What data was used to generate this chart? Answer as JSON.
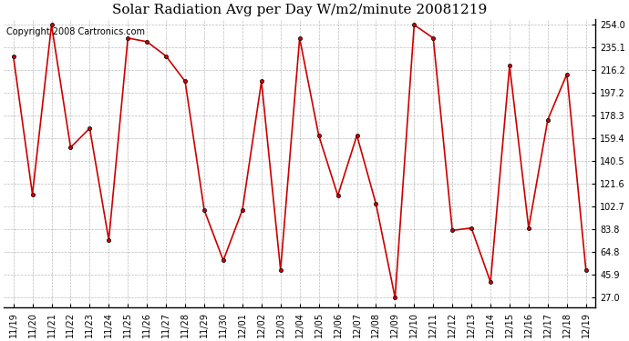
{
  "title": "Solar Radiation Avg per Day W/m2/minute 20081219",
  "copyright_text": "Copyright 2008 Cartronics.com",
  "labels": [
    "11/19",
    "11/20",
    "11/21",
    "11/22",
    "11/23",
    "11/24",
    "11/25",
    "11/26",
    "11/27",
    "11/28",
    "11/29",
    "11/30",
    "12/01",
    "12/02",
    "12/03",
    "12/04",
    "12/05",
    "12/06",
    "12/07",
    "12/08",
    "12/09",
    "12/10",
    "12/11",
    "12/12",
    "12/13",
    "12/14",
    "12/15",
    "12/16",
    "12/17",
    "12/18",
    "12/19"
  ],
  "values": [
    228.0,
    113.0,
    254.0,
    152.0,
    168.0,
    75.0,
    243.0,
    240.0,
    228.0,
    207.0,
    100.0,
    58.0,
    100.0,
    207.0,
    50.0,
    243.0,
    162.0,
    112.0,
    162.0,
    105.0,
    27.0,
    254.0,
    243.0,
    83.0,
    85.0,
    40.0,
    220.0,
    85.0,
    175.0,
    213.0,
    50.0
  ],
  "line_color": "#cc0000",
  "marker": "o",
  "marker_size": 3,
  "marker_facecolor": "#cc0000",
  "marker_edgecolor": "#000000",
  "background_color": "#ffffff",
  "grid_color": "#aaaaaa",
  "ymin": 27.0,
  "ymax": 254.0,
  "yticks": [
    27.0,
    45.9,
    64.8,
    83.8,
    102.7,
    121.6,
    140.5,
    159.4,
    178.3,
    197.2,
    216.2,
    235.1,
    254.0
  ],
  "title_fontsize": 11,
  "tick_fontsize": 7,
  "copyright_fontsize": 7
}
